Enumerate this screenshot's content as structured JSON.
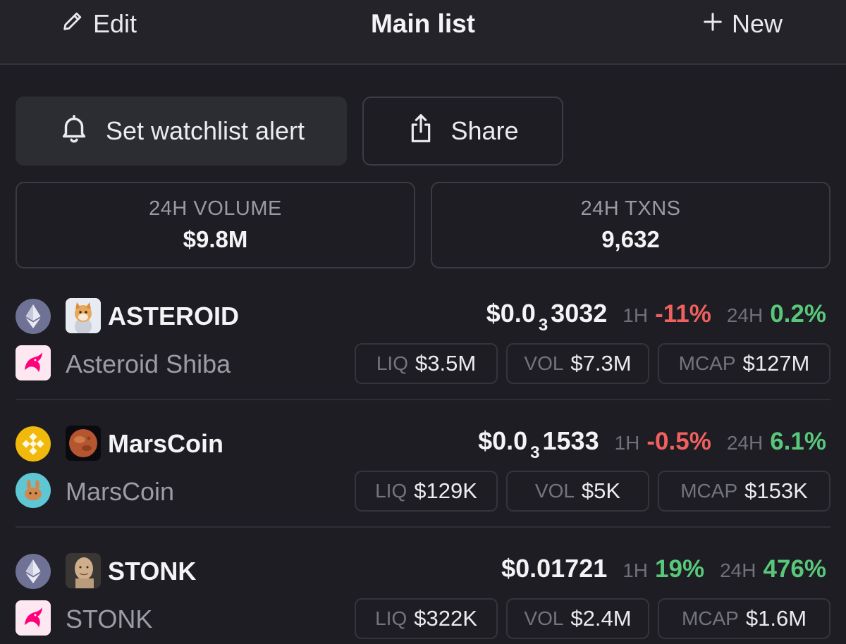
{
  "header": {
    "edit_label": "Edit",
    "title": "Main list",
    "new_label": "New"
  },
  "actions": {
    "alert_label": "Set watchlist alert",
    "share_label": "Share"
  },
  "stats": {
    "volume_label": "24H VOLUME",
    "volume_value": "$9.8M",
    "txns_label": "24H TXNS",
    "txns_value": "9,632"
  },
  "labels": {
    "h1": "1H",
    "h24": "24H",
    "liq": "LIQ",
    "vol": "VOL",
    "mcap": "MCAP"
  },
  "tokens": [
    {
      "chain_icon": "ethereum-icon",
      "dex_icon": "uniswap-icon",
      "symbol": "ASTEROID",
      "name": "Asteroid Shiba",
      "price_prefix": "$0.0",
      "price_zeros": "3",
      "price_digits": "3032",
      "change_1h": "-11%",
      "change_24h": "0.2%",
      "liq": "$3.5M",
      "vol": "$7.3M",
      "mcap": "$127M"
    },
    {
      "chain_icon": "bnb-chain-icon",
      "dex_icon": "pancakeswap-icon",
      "symbol": "MarsCoin",
      "name": "MarsCoin",
      "price_prefix": "$0.0",
      "price_zeros": "3",
      "price_digits": "1533",
      "change_1h": "-0.5%",
      "change_24h": "6.1%",
      "liq": "$129K",
      "vol": "$5K",
      "mcap": "$153K"
    },
    {
      "chain_icon": "ethereum-icon",
      "dex_icon": "uniswap-icon",
      "symbol": "STONK",
      "name": "STONK",
      "price": "$0.01721",
      "change_1h": "19%",
      "change_24h": "476%",
      "liq": "$322K",
      "vol": "$2.4M",
      "mcap": "$1.6M"
    }
  ],
  "colors": {
    "background": "#1d1d23",
    "positive": "#59c77a",
    "negative": "#f0605e",
    "ethereum": "#6f7195",
    "bnb": "#f0b90b",
    "uniswap_pink": "#ff007a"
  }
}
